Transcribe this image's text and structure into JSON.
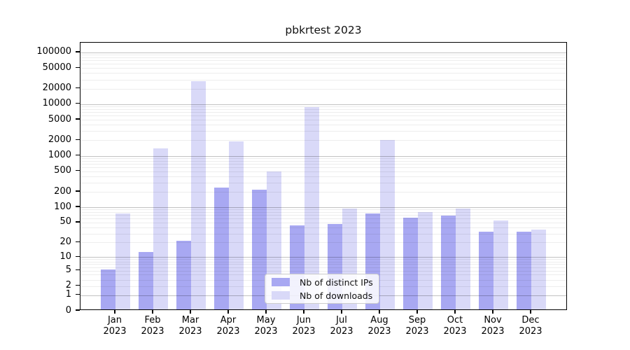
{
  "title": "pbkrtest 2023",
  "chart_data": {
    "type": "bar",
    "title": "pbkrtest 2023",
    "categories": [
      "Jan 2023",
      "Feb 2023",
      "Mar 2023",
      "Apr 2023",
      "May 2023",
      "Jun 2023",
      "Jul 2023",
      "Aug 2023",
      "Sep 2023",
      "Oct 2023",
      "Nov 2023",
      "Dec 2023"
    ],
    "series": [
      {
        "name": "Nb of distinct IPs",
        "color": "#a8a8f2",
        "values": [
          5,
          12,
          20,
          225,
          205,
          41,
          44,
          70,
          58,
          65,
          31,
          31
        ]
      },
      {
        "name": "Nb of downloads",
        "color": "#d9d9f8",
        "values": [
          70,
          1300,
          26000,
          1800,
          470,
          8300,
          88,
          1900,
          76,
          88,
          52,
          34
        ]
      }
    ],
    "xlabel": "",
    "ylabel": "",
    "y_axis": {
      "scale": "log1p",
      "tick_values": [
        0,
        1,
        2,
        5,
        10,
        20,
        50,
        100,
        200,
        500,
        1000,
        2000,
        5000,
        10000,
        20000,
        50000,
        100000
      ],
      "ylim": [
        0,
        155000
      ]
    },
    "grid": "on",
    "legend_position": "lower center"
  },
  "colors": {
    "series1": "#a8a8f2",
    "series2": "#d9d9f8",
    "grid_major": "rgba(0,0,0,0.24)",
    "grid_minor": "rgba(0,0,0,0.07)",
    "spine": "#000000"
  }
}
